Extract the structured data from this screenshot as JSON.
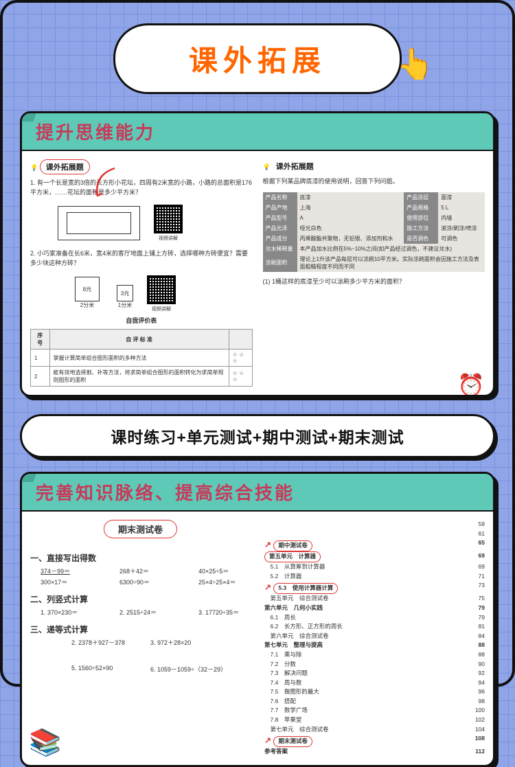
{
  "hero": {
    "title": "课外拓展"
  },
  "card1": {
    "banner": "提升思维能力",
    "left": {
      "header": "课外拓展题",
      "q1": "1. 有一个长是宽的3倍的长方形小花坛，四周有2米宽的小路，小路的总面积是176平方米，……花坛的面积是多少平方米？",
      "q2": "2. 小巧家准备在长6米，宽4米的客厅地面上铺上方砖，选择哪种方砖便宜？需要多少块这种方砖？",
      "tile1": {
        "price": "8元",
        "size": "2分米"
      },
      "tile2": {
        "price": "3元",
        "size": "1分米"
      },
      "qr_label": "视频讲解",
      "eval_title": "自我评价表",
      "eval_cols": [
        "序 号",
        "自 评 标 准",
        ""
      ],
      "eval_rows": [
        [
          "1",
          "掌握计算简单组合图形面积的多种方法",
          "☆ ☆ ☆"
        ],
        [
          "2",
          "能有效地选择割、补等方法，将求简单组合图形的面积转化为求简单规则图形的面积",
          "☆ ☆ ☆"
        ]
      ]
    },
    "right": {
      "header": "课外拓展题",
      "intro": "根据下列某品牌底漆的使用说明，回答下列问题。",
      "specs": [
        [
          "产品名称",
          "底漆",
          "产品涂层",
          "面漆"
        ],
        [
          "产品产地",
          "上海",
          "产品规格",
          "5 L"
        ],
        [
          "产品型号",
          "A",
          "使用部位",
          "内墙"
        ],
        [
          "产品光泽",
          "哑光白色",
          "施工方法",
          "滚涂/刷涂/喷涂"
        ],
        [
          "产品成分",
          "丙烯酸酯共聚物，无铅银、添加剂和水",
          "是否调色",
          "可调色"
        ]
      ],
      "dilution": {
        "label": "兑水稀释量",
        "text": "本产品加水比例在5%~10%之间(如产品经过调色，不建议兑水)"
      },
      "coverage": {
        "label": "涂刷面积",
        "text": "理论上1升该产品每层可以涂刷10平方米。实际涂刷面积会因施工方法及表面粗糙程度不同而不同"
      },
      "q": "(1) 1桶这样的底漆至少可以涂刷多少平方米的面积？"
    }
  },
  "pill": {
    "title": "课时练习+单元测试+期中测试+期末测试"
  },
  "card2": {
    "banner": "完善知识脉络、提高综合技能",
    "test_title": "期末测试卷",
    "s1": {
      "title": "一、直接写出得数",
      "r1": [
        "374－99＝",
        "268＋42＝",
        "40×25÷5＝"
      ],
      "r2": [
        "300×17＝",
        "6300÷90＝",
        "25×4÷25×4＝"
      ]
    },
    "s2": {
      "title": "二、列竖式计算",
      "r1": [
        "1. 370×230＝",
        "2. 2515÷24＝",
        "3. 17720÷35＝"
      ]
    },
    "s3": {
      "title": "三、递等式计算",
      "r1": [
        "2. 2378＋927－378",
        "3. 972＋28×20"
      ],
      "r2": [
        "5. 1560÷52×90",
        "6. 1059－1059÷（32－29）"
      ]
    },
    "toc": {
      "pages_top": [
        "59",
        "61"
      ],
      "rows": [
        {
          "arrow": true,
          "circ": "期中测试卷",
          "page": "65",
          "bold": true
        },
        {
          "text": "第五单元　计算器",
          "page": "69",
          "bold": true,
          "circ2": true
        },
        {
          "text": "　5.1　从算筹到计算器",
          "page": "69"
        },
        {
          "text": "　5.2　计算器",
          "page": "71"
        },
        {
          "arrow": true,
          "circ": "5.3　使用计算器计算",
          "page": "73"
        },
        {
          "text": "　第五单元　综合测试卷",
          "page": "75"
        },
        {
          "text": "第六单元　几何小实践",
          "page": "79",
          "bold": true
        },
        {
          "text": "　6.1　周长",
          "page": "79"
        },
        {
          "text": "　6.2　长方形、正方形的周长",
          "page": "81"
        },
        {
          "text": "　第六单元　综合测试卷",
          "page": "84"
        },
        {
          "text": "第七单元　整理与提高",
          "page": "88",
          "bold": true
        },
        {
          "text": "　7.1　乘与除",
          "page": "88"
        },
        {
          "text": "　7.2　分数",
          "page": "90"
        },
        {
          "text": "　7.3　解决问题",
          "page": "92"
        },
        {
          "text": "　7.4　周与数",
          "page": "94"
        },
        {
          "text": "　7.5　做图形的最大",
          "page": "96"
        },
        {
          "text": "　7.6　搭配",
          "page": "98"
        },
        {
          "text": "　7.7　数学广场",
          "page": "100"
        },
        {
          "text": "　7.8　苹果堂",
          "page": "102"
        },
        {
          "text": "　第七单元　综合测试卷",
          "page": "104"
        },
        {
          "arrow": true,
          "circ": "期末测试卷",
          "page": "108",
          "bold": true
        },
        {
          "text": "参考答案",
          "page": "112",
          "bold": true
        }
      ]
    }
  }
}
